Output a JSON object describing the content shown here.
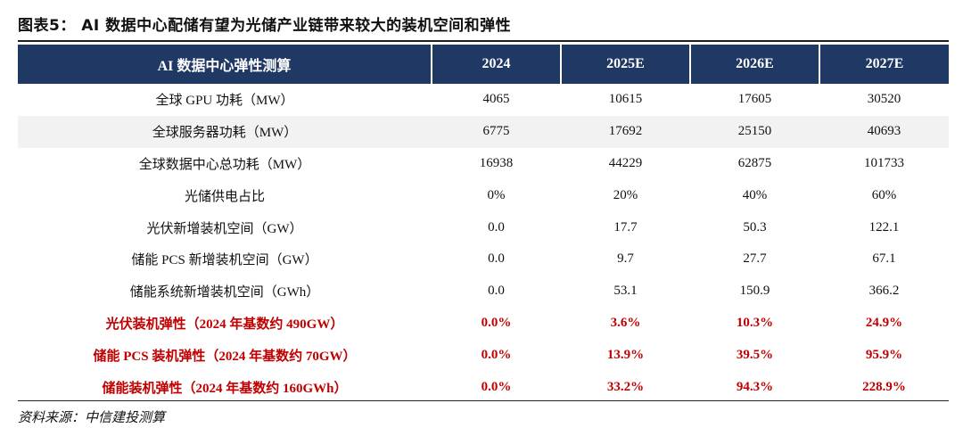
{
  "title": "图表5： AI 数据中心配储有望为光储产业链带来较大的装机空间和弹性",
  "table": {
    "headers": [
      "AI 数据中心弹性测算",
      "2024",
      "2025E",
      "2026E",
      "2027E"
    ],
    "rows": [
      {
        "label": "全球 GPU 功耗（MW）",
        "values": [
          "4065",
          "10615",
          "17605",
          "30520"
        ],
        "alt": false,
        "highlight": false
      },
      {
        "label": "全球服务器功耗（MW）",
        "values": [
          "6775",
          "17692",
          "25150",
          "40693"
        ],
        "alt": true,
        "highlight": false
      },
      {
        "label": "全球数据中心总功耗（MW）",
        "values": [
          "16938",
          "44229",
          "62875",
          "101733"
        ],
        "alt": false,
        "highlight": false
      },
      {
        "label": "光储供电占比",
        "values": [
          "0%",
          "20%",
          "40%",
          "60%"
        ],
        "alt": false,
        "highlight": false
      },
      {
        "label": "光伏新增装机空间（GW）",
        "values": [
          "0.0",
          "17.7",
          "50.3",
          "122.1"
        ],
        "alt": false,
        "highlight": false
      },
      {
        "label": "储能 PCS 新增装机空间（GW）",
        "values": [
          "0.0",
          "9.7",
          "27.7",
          "67.1"
        ],
        "alt": false,
        "highlight": false
      },
      {
        "label": "储能系统新增装机空间（GWh）",
        "values": [
          "0.0",
          "53.1",
          "150.9",
          "366.2"
        ],
        "alt": false,
        "highlight": false
      },
      {
        "label": "光伏装机弹性（2024 年基数约 490GW）",
        "values": [
          "0.0%",
          "3.6%",
          "10.3%",
          "24.9%"
        ],
        "alt": false,
        "highlight": true
      },
      {
        "label": "储能 PCS 装机弹性（2024 年基数约 70GW）",
        "values": [
          "0.0%",
          "13.9%",
          "39.5%",
          "95.9%"
        ],
        "alt": false,
        "highlight": true
      },
      {
        "label": "储能装机弹性（2024 年基数约 160GWh）",
        "values": [
          "0.0%",
          "33.2%",
          "94.3%",
          "228.9%"
        ],
        "alt": false,
        "highlight": true
      }
    ]
  },
  "source": "资料来源：中信建投测算",
  "colors": {
    "header_bg": "#1f3864",
    "highlight_text": "#c00000",
    "alt_row_bg": "#f2f2f2"
  }
}
